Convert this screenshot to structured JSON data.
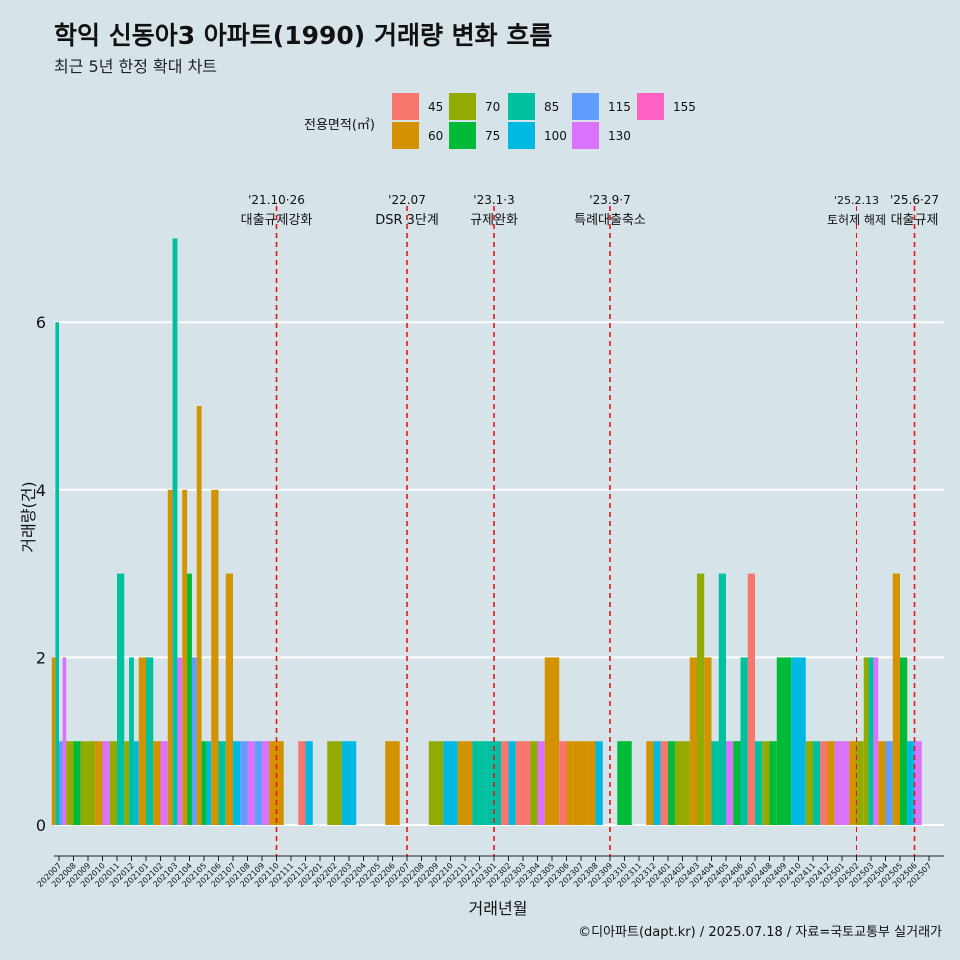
{
  "title": "학익 신동아3 아파트(1990) 거래량 변화 흐름",
  "subtitle": "최근 5년 한정 확대 차트",
  "caption": "©디아파트(dapt.kr) / 2025.07.18 / 자료=국토교통부 실거래가",
  "legend": {
    "title": "전용면적(㎡)",
    "items": [
      {
        "label": "45",
        "color": "#f8766d"
      },
      {
        "label": "60",
        "color": "#d39200"
      },
      {
        "label": "70",
        "color": "#93aa00"
      },
      {
        "label": "75",
        "color": "#00ba38"
      },
      {
        "label": "85",
        "color": "#00c19f"
      },
      {
        "label": "100",
        "color": "#00b9e3"
      },
      {
        "label": "115",
        "color": "#619cff"
      },
      {
        "label": "130",
        "color": "#db72fb"
      },
      {
        "label": "155",
        "color": "#ff61c3"
      }
    ]
  },
  "chart_data": {
    "type": "bar",
    "xlabel": "거래년월",
    "ylabel": "거래량(건)",
    "ylim": [
      0,
      7
    ],
    "yticks": [
      0,
      2,
      4,
      6
    ],
    "grid": true,
    "categories": [
      "202007",
      "202008",
      "202009",
      "202010",
      "202011",
      "202012",
      "202101",
      "202102",
      "202103",
      "202104",
      "202105",
      "202106",
      "202107",
      "202108",
      "202109",
      "202110",
      "202111",
      "202112",
      "202201",
      "202202",
      "202203",
      "202204",
      "202205",
      "202206",
      "202207",
      "202208",
      "202209",
      "202210",
      "202211",
      "202212",
      "202301",
      "202302",
      "202303",
      "202304",
      "202305",
      "202306",
      "202307",
      "202308",
      "202309",
      "202310",
      "202311",
      "202312",
      "202401",
      "202402",
      "202403",
      "202404",
      "202405",
      "202406",
      "202407",
      "202408",
      "202409",
      "202410",
      "202411",
      "202412",
      "202501",
      "202502",
      "202503",
      "202504",
      "202505",
      "202506",
      "202507"
    ],
    "bars": [
      {
        "x": "202007",
        "area": "60",
        "value": 2
      },
      {
        "x": "202007",
        "area": "85",
        "value": 6
      },
      {
        "x": "202007",
        "area": "115",
        "value": 1
      },
      {
        "x": "202007",
        "area": "130",
        "value": 2
      },
      {
        "x": "202008",
        "area": "70",
        "value": 1
      },
      {
        "x": "202008",
        "area": "75",
        "value": 1
      },
      {
        "x": "202009",
        "area": "70",
        "value": 1
      },
      {
        "x": "202010",
        "area": "60",
        "value": 1
      },
      {
        "x": "202010",
        "area": "130",
        "value": 1
      },
      {
        "x": "202011",
        "area": "70",
        "value": 1
      },
      {
        "x": "202011",
        "area": "85",
        "value": 3
      },
      {
        "x": "202012",
        "area": "70",
        "value": 1
      },
      {
        "x": "202012",
        "area": "85",
        "value": 2
      },
      {
        "x": "202012",
        "area": "100",
        "value": 1
      },
      {
        "x": "202101",
        "area": "60",
        "value": 2
      },
      {
        "x": "202101",
        "area": "85",
        "value": 2
      },
      {
        "x": "202102",
        "area": "60",
        "value": 1
      },
      {
        "x": "202102",
        "area": "130",
        "value": 1
      },
      {
        "x": "202103",
        "area": "60",
        "value": 4
      },
      {
        "x": "202103",
        "area": "85",
        "value": 7
      },
      {
        "x": "202103",
        "area": "130",
        "value": 2
      },
      {
        "x": "202104",
        "area": "60",
        "value": 4
      },
      {
        "x": "202104",
        "area": "75",
        "value": 3
      },
      {
        "x": "202104",
        "area": "115",
        "value": 2
      },
      {
        "x": "202105",
        "area": "60",
        "value": 5
      },
      {
        "x": "202105",
        "area": "75",
        "value": 1
      },
      {
        "x": "202105",
        "area": "100",
        "value": 1
      },
      {
        "x": "202106",
        "area": "60",
        "value": 4
      },
      {
        "x": "202106",
        "area": "85",
        "value": 1
      },
      {
        "x": "202107",
        "area": "60",
        "value": 3
      },
      {
        "x": "202107",
        "area": "100",
        "value": 1
      },
      {
        "x": "202108",
        "area": "115",
        "value": 1
      },
      {
        "x": "202108",
        "area": "130",
        "value": 1
      },
      {
        "x": "202109",
        "area": "115",
        "value": 1
      },
      {
        "x": "202109",
        "area": "130",
        "value": 1
      },
      {
        "x": "202110",
        "area": "60",
        "value": 1
      },
      {
        "x": "202112",
        "area": "45",
        "value": 1
      },
      {
        "x": "202112",
        "area": "100",
        "value": 1
      },
      {
        "x": "202202",
        "area": "70",
        "value": 1
      },
      {
        "x": "202203",
        "area": "100",
        "value": 1
      },
      {
        "x": "202206",
        "area": "60",
        "value": 1
      },
      {
        "x": "202209",
        "area": "70",
        "value": 1
      },
      {
        "x": "202210",
        "area": "100",
        "value": 1
      },
      {
        "x": "202211",
        "area": "60",
        "value": 1
      },
      {
        "x": "202212",
        "area": "85",
        "value": 1
      },
      {
        "x": "202301",
        "area": "85",
        "value": 1
      },
      {
        "x": "202302",
        "area": "45",
        "value": 1
      },
      {
        "x": "202302",
        "area": "100",
        "value": 1
      },
      {
        "x": "202303",
        "area": "45",
        "value": 1
      },
      {
        "x": "202304",
        "area": "70",
        "value": 1
      },
      {
        "x": "202304",
        "area": "130",
        "value": 1
      },
      {
        "x": "202305",
        "area": "60",
        "value": 2
      },
      {
        "x": "202306",
        "area": "45",
        "value": 1
      },
      {
        "x": "202306",
        "area": "60",
        "value": 1
      },
      {
        "x": "202307",
        "area": "60",
        "value": 1
      },
      {
        "x": "202308",
        "area": "60",
        "value": 1
      },
      {
        "x": "202308",
        "area": "100",
        "value": 1
      },
      {
        "x": "202310",
        "area": "75",
        "value": 1
      },
      {
        "x": "202312",
        "area": "60",
        "value": 1
      },
      {
        "x": "202312",
        "area": "100",
        "value": 1
      },
      {
        "x": "202401",
        "area": "45",
        "value": 1
      },
      {
        "x": "202401",
        "area": "75",
        "value": 1
      },
      {
        "x": "202402",
        "area": "70",
        "value": 1
      },
      {
        "x": "202403",
        "area": "60",
        "value": 2
      },
      {
        "x": "202403",
        "area": "70",
        "value": 3
      },
      {
        "x": "202404",
        "area": "60",
        "value": 2
      },
      {
        "x": "202404",
        "area": "85",
        "value": 1
      },
      {
        "x": "202405",
        "area": "85",
        "value": 3
      },
      {
        "x": "202405",
        "area": "130",
        "value": 1
      },
      {
        "x": "202406",
        "area": "75",
        "value": 1
      },
      {
        "x": "202406",
        "area": "85",
        "value": 2
      },
      {
        "x": "202407",
        "area": "45",
        "value": 3
      },
      {
        "x": "202407",
        "area": "85",
        "value": 1
      },
      {
        "x": "202408",
        "area": "70",
        "value": 1
      },
      {
        "x": "202408",
        "area": "75",
        "value": 1
      },
      {
        "x": "202409",
        "area": "75",
        "value": 2
      },
      {
        "x": "202410",
        "area": "100",
        "value": 2
      },
      {
        "x": "202411",
        "area": "70",
        "value": 1
      },
      {
        "x": "202411",
        "area": "85",
        "value": 1
      },
      {
        "x": "202412",
        "area": "45",
        "value": 1
      },
      {
        "x": "202412",
        "area": "60",
        "value": 1
      },
      {
        "x": "202501",
        "area": "130",
        "value": 1
      },
      {
        "x": "202502",
        "area": "60",
        "value": 1
      },
      {
        "x": "202502",
        "area": "70",
        "value": 1
      },
      {
        "x": "202503",
        "area": "70",
        "value": 2
      },
      {
        "x": "202503",
        "area": "85",
        "value": 2
      },
      {
        "x": "202503",
        "area": "130",
        "value": 2
      },
      {
        "x": "202504",
        "area": "60",
        "value": 1
      },
      {
        "x": "202504",
        "area": "115",
        "value": 1
      },
      {
        "x": "202505",
        "area": "60",
        "value": 3
      },
      {
        "x": "202505",
        "area": "75",
        "value": 2
      },
      {
        "x": "202506",
        "area": "100",
        "value": 1
      },
      {
        "x": "202506",
        "area": "130",
        "value": 1
      }
    ],
    "events": [
      {
        "x": "202110",
        "date": "'21.10·26",
        "label": "대출규제강화"
      },
      {
        "x": "202207",
        "date": "'22.07",
        "label": "DSR 3단계"
      },
      {
        "x": "202301",
        "date": "'23.1·3",
        "label": "규제완화"
      },
      {
        "x": "202309",
        "date": "'23.9·7",
        "label": "특례대출축소"
      },
      {
        "x": "202502",
        "date": "'25.2.13",
        "label": "토허제 해제"
      },
      {
        "x": "202506",
        "date": "'25.6·27",
        "label": "대출규제"
      }
    ]
  }
}
